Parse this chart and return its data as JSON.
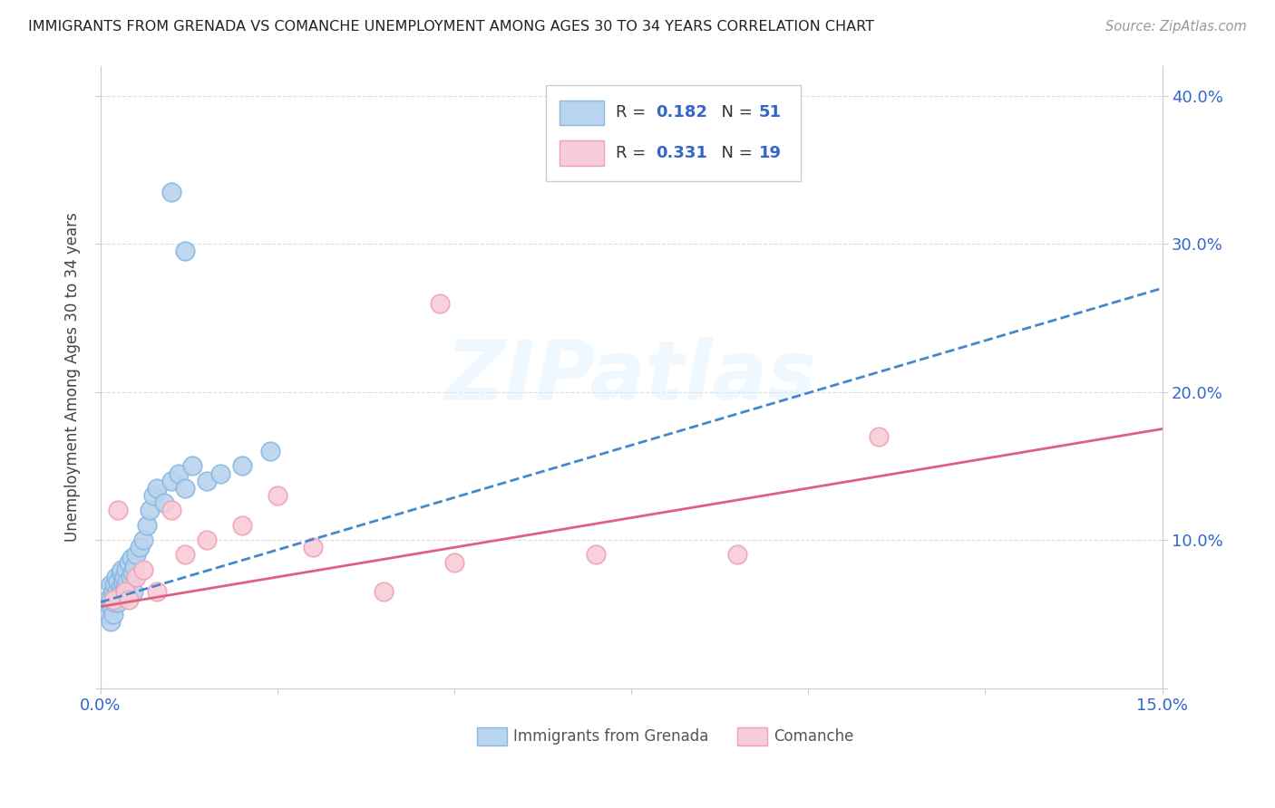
{
  "title": "IMMIGRANTS FROM GRENADA VS COMANCHE UNEMPLOYMENT AMONG AGES 30 TO 34 YEARS CORRELATION CHART",
  "source": "Source: ZipAtlas.com",
  "ylabel": "Unemployment Among Ages 30 to 34 years",
  "xlim": [
    0.0,
    0.15
  ],
  "ylim": [
    0.0,
    0.42
  ],
  "x_ticks": [
    0.0,
    0.025,
    0.05,
    0.075,
    0.1,
    0.125,
    0.15
  ],
  "x_tick_labels": [
    "0.0%",
    "",
    "",
    "",
    "",
    "",
    "15.0%"
  ],
  "y_ticks": [
    0.0,
    0.1,
    0.2,
    0.3,
    0.4
  ],
  "y_tick_labels_right": [
    "",
    "10.0%",
    "20.0%",
    "30.0%",
    "40.0%"
  ],
  "blue_color": "#8ab8e0",
  "blue_fill": "#b8d4ee",
  "pink_color": "#f0a0b8",
  "pink_fill": "#f8ccd8",
  "trendline_blue_color": "#4488cc",
  "trendline_pink_color": "#e06080",
  "r1": 0.182,
  "n1": 51,
  "r2": 0.331,
  "n2": 19,
  "blue_x": [
    0.0008,
    0.001,
    0.0012,
    0.0014,
    0.0015,
    0.0015,
    0.0016,
    0.0018,
    0.0018,
    0.002,
    0.002,
    0.0022,
    0.0022,
    0.0024,
    0.0025,
    0.0025,
    0.0026,
    0.0028,
    0.0028,
    0.003,
    0.003,
    0.0032,
    0.0033,
    0.0034,
    0.0035,
    0.0036,
    0.0038,
    0.004,
    0.0042,
    0.0044,
    0.0045,
    0.0046,
    0.0048,
    0.005,
    0.0055,
    0.006,
    0.0065,
    0.007,
    0.0075,
    0.008,
    0.009,
    0.01,
    0.011,
    0.012,
    0.013,
    0.015,
    0.017,
    0.02,
    0.024,
    0.01,
    0.012
  ],
  "blue_y": [
    0.055,
    0.06,
    0.05,
    0.045,
    0.06,
    0.07,
    0.055,
    0.065,
    0.05,
    0.058,
    0.07,
    0.06,
    0.075,
    0.065,
    0.058,
    0.072,
    0.062,
    0.068,
    0.078,
    0.065,
    0.08,
    0.07,
    0.062,
    0.075,
    0.068,
    0.08,
    0.072,
    0.085,
    0.075,
    0.088,
    0.078,
    0.065,
    0.082,
    0.09,
    0.095,
    0.1,
    0.11,
    0.12,
    0.13,
    0.135,
    0.125,
    0.14,
    0.145,
    0.135,
    0.15,
    0.14,
    0.145,
    0.15,
    0.16,
    0.335,
    0.295
  ],
  "pink_x": [
    0.0018,
    0.0025,
    0.0035,
    0.004,
    0.005,
    0.006,
    0.008,
    0.01,
    0.012,
    0.015,
    0.02,
    0.025,
    0.03,
    0.04,
    0.05,
    0.07,
    0.09,
    0.11,
    0.048
  ],
  "pink_y": [
    0.06,
    0.12,
    0.065,
    0.06,
    0.075,
    0.08,
    0.065,
    0.12,
    0.09,
    0.1,
    0.11,
    0.13,
    0.095,
    0.065,
    0.085,
    0.09,
    0.09,
    0.17,
    0.26
  ],
  "watermark": "ZIPatlas",
  "figsize": [
    14.06,
    8.92
  ],
  "dpi": 100
}
